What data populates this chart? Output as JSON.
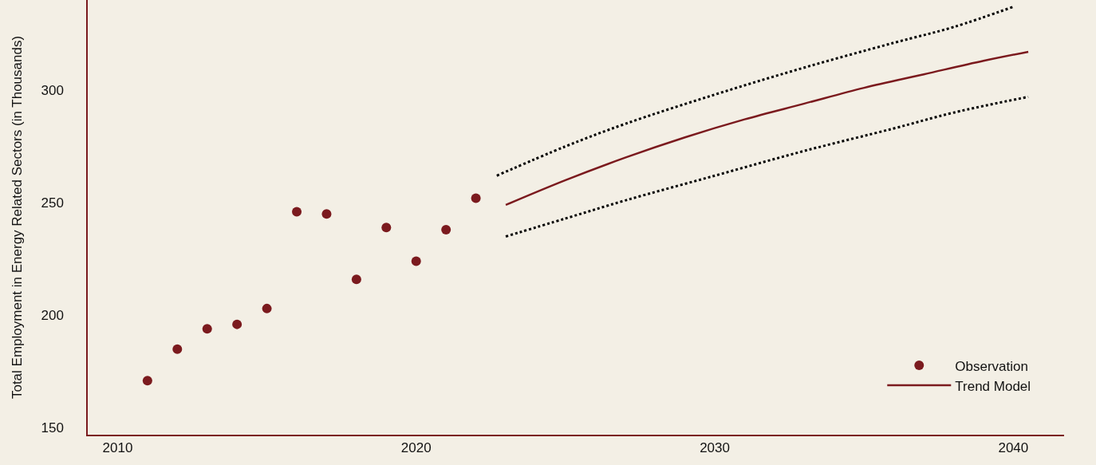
{
  "chart_data": {
    "type": "scatter",
    "ylabel": "Total Employment in Energy Related Sectors (in Thousands)",
    "xlim": [
      2009,
      2041.7
    ],
    "xticks": [
      2010,
      2020,
      2030,
      2040
    ],
    "ylim": [
      147,
      340
    ],
    "yticks": [
      150,
      200,
      250,
      300
    ],
    "grid": false,
    "legend": "bottom right",
    "series": [
      {
        "name": "Observation",
        "marker": "circle",
        "color": "#7b1a1e",
        "x": [
          2011,
          2012,
          2013,
          2014,
          2015,
          2016,
          2017,
          2018,
          2019,
          2020,
          2021,
          2022
        ],
        "values": [
          171,
          185,
          194,
          196,
          203,
          246,
          245,
          216,
          239,
          224,
          238,
          252
        ]
      },
      {
        "name": "Trend Model",
        "type": "line",
        "line_style": "solid",
        "color": "#7b1a1e",
        "x": [
          2023,
          2025,
          2027,
          2029,
          2031,
          2033,
          2035,
          2037,
          2039,
          2040.5
        ],
        "values": [
          249,
          260,
          270,
          279,
          287,
          294,
          301,
          307,
          313,
          317
        ]
      },
      {
        "type": "line",
        "line_style": "dotted",
        "color": "#000000",
        "x": [
          2022.7,
          2025,
          2027,
          2030,
          2033,
          2036,
          2038,
          2040
        ],
        "values": [
          262,
          275,
          285,
          298,
          310,
          321,
          328,
          337
        ]
      },
      {
        "type": "line",
        "line_style": "dotted",
        "color": "#000000",
        "x": [
          2023,
          2025,
          2027,
          2030,
          2033,
          2036,
          2038,
          2040.5
        ],
        "values": [
          235,
          243,
          251,
          262,
          273,
          283,
          290,
          297
        ]
      }
    ]
  }
}
